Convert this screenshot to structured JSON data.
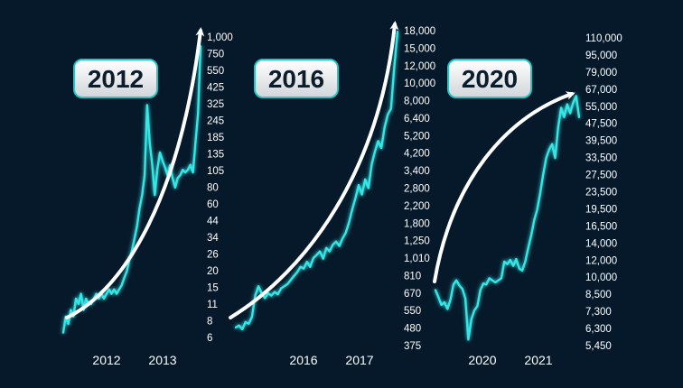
{
  "colors": {
    "background": "#06192a",
    "line": "#35e6e6",
    "arrow": "#ffffff",
    "text": "#ffffff",
    "badge_fill_top": "#ffffff",
    "badge_fill_bottom": "#d2d6da",
    "badge_border": "#20c9c9",
    "badge_text": "#0b1c2c"
  },
  "chart_data": [
    {
      "type": "line",
      "badge": "2012",
      "x_tick_labels": [
        "2012",
        "2013"
      ],
      "y_tick_labels": [
        "1,000",
        "750",
        "550",
        "425",
        "325",
        "245",
        "185",
        "135",
        "105",
        "80",
        "60",
        "44",
        "34",
        "26",
        "20",
        "15",
        "11",
        "8",
        "6"
      ],
      "y_scale": "log",
      "series": [
        {
          "x": [
            0,
            1,
            2,
            3,
            4,
            5,
            6,
            7,
            8,
            9,
            10,
            11,
            12,
            13,
            14,
            15,
            16,
            17,
            18,
            19,
            20,
            21,
            22,
            23,
            24,
            25,
            26,
            27,
            28,
            29,
            30,
            31,
            32,
            33,
            34,
            35,
            36,
            37,
            38,
            39,
            40,
            41,
            42,
            43,
            44,
            45,
            46,
            47,
            48,
            49,
            50,
            51,
            52,
            53,
            54
          ],
          "values": [
            6,
            8,
            7,
            9,
            8,
            11,
            10,
            12,
            9,
            11,
            10,
            10,
            11,
            12,
            11,
            12,
            11,
            12,
            13,
            12,
            13,
            12,
            13,
            14,
            16,
            18,
            22,
            26,
            32,
            40,
            55,
            70,
            100,
            350,
            180,
            120,
            70,
            110,
            150,
            130,
            115,
            100,
            120,
            95,
            80,
            95,
            100,
            110,
            105,
            110,
            120,
            105,
            180,
            300,
            1000
          ]
        }
      ],
      "arrow": "up-right curve"
    },
    {
      "type": "line",
      "badge": "2016",
      "x_tick_labels": [
        "2016",
        "2017"
      ],
      "y_tick_labels": [
        "18,000",
        "15,000",
        "12,000",
        "10,000",
        "8,000",
        "6,400",
        "5,200",
        "4,200",
        "3,400",
        "2,800",
        "2,200",
        "1,800",
        "1,250",
        "1,010",
        "810",
        "670",
        "550",
        "480",
        "375"
      ],
      "y_scale": "log",
      "series": [
        {
          "x": [
            0,
            1,
            2,
            3,
            4,
            5,
            6,
            7,
            8,
            9,
            10,
            11,
            12,
            13,
            14,
            15,
            16,
            17,
            18,
            19,
            20,
            21,
            22,
            23,
            24,
            25,
            26,
            27,
            28,
            29,
            30,
            31,
            32,
            33,
            34,
            35,
            36,
            37,
            38,
            39,
            40,
            41,
            42,
            43,
            44,
            45,
            46,
            47,
            48,
            49,
            50
          ],
          "values": [
            410,
            420,
            400,
            440,
            430,
            470,
            620,
            700,
            640,
            600,
            640,
            620,
            650,
            630,
            680,
            700,
            720,
            760,
            800,
            840,
            900,
            880,
            960,
            900,
            1010,
            1050,
            1100,
            1000,
            1150,
            1100,
            1200,
            1250,
            1180,
            1300,
            1400,
            1600,
            1900,
            2200,
            2600,
            2300,
            2800,
            2500,
            3400,
            4000,
            4600,
            4200,
            5500,
            6500,
            7000,
            12000,
            19000
          ]
        }
      ],
      "arrow": "up-right curve"
    },
    {
      "type": "line",
      "badge": "2020",
      "x_tick_labels": [
        "2020",
        "2021"
      ],
      "y_tick_labels": [
        "110,000",
        "95,000",
        "79,000",
        "67,000",
        "55,000",
        "47,500",
        "39,500",
        "33,500",
        "27,500",
        "23,500",
        "19,500",
        "16,500",
        "14,000",
        "12,000",
        "10,000",
        "8,500",
        "7,300",
        "6,300",
        "5,450"
      ],
      "y_scale": "log",
      "series": [
        {
          "x": [
            0,
            1,
            2,
            3,
            4,
            5,
            6,
            7,
            8,
            9,
            10,
            11,
            12,
            13,
            14,
            15,
            16,
            17,
            18,
            19,
            20,
            21,
            22,
            23,
            24,
            25,
            26,
            27,
            28,
            29,
            30,
            31,
            32,
            33,
            34,
            35,
            36,
            37,
            38,
            39,
            40,
            41,
            42,
            43,
            44,
            45,
            46,
            47,
            48
          ],
          "values": [
            8600,
            8000,
            7400,
            7600,
            7100,
            7800,
            9100,
            9500,
            9000,
            8700,
            7900,
            5200,
            6400,
            7000,
            7300,
            8600,
            9200,
            9100,
            9700,
            9500,
            9300,
            9500,
            9700,
            11500,
            11200,
            11700,
            11000,
            11800,
            10700,
            10500,
            11500,
            13200,
            15000,
            17500,
            19500,
            23000,
            28000,
            33000,
            36000,
            38000,
            33000,
            45000,
            55000,
            50000,
            57000,
            52000,
            58000,
            62000,
            50000
          ]
        }
      ],
      "arrow": "up-right curve"
    }
  ]
}
